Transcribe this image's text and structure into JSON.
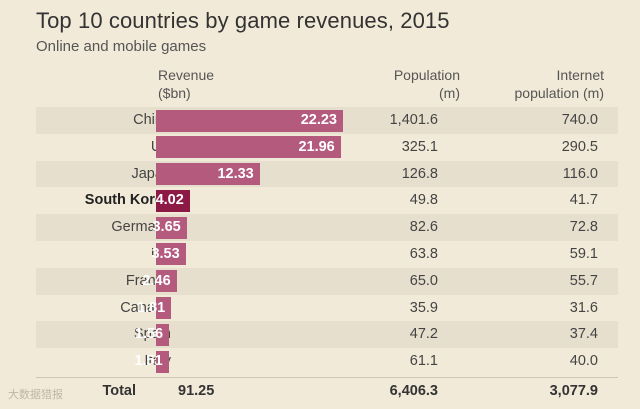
{
  "title": "Top 10 countries by game revenues, 2015",
  "subtitle": "Online and mobile games",
  "headers": {
    "revenue_line1": "Revenue",
    "revenue_line2": "($bn)",
    "population_line1": "Population",
    "population_line2": "(m)",
    "internet_line1": "Internet",
    "internet_line2": "population (m)"
  },
  "total": {
    "label": "Total",
    "revenue": "91.25",
    "population": "6,406.3",
    "internet": "3,077.9"
  },
  "watermark": "大数据猎报",
  "colors": {
    "background": "#f2ead8",
    "bar": "#b45a7c",
    "highlight_bar": "#8d1a44",
    "alt_row": "#e7dfce"
  },
  "chart_data": {
    "type": "bar",
    "orientation": "horizontal",
    "title": "Top 10 countries by game revenues, 2015",
    "subtitle": "Online and mobile games",
    "categories": [
      "China",
      "US",
      "Japan",
      "South Korea",
      "Germany",
      "UK",
      "France",
      "Canada",
      "Spain",
      "Italy"
    ],
    "highlight": "South Korea",
    "series": [
      {
        "name": "Revenue ($bn)",
        "values": [
          22.23,
          21.96,
          12.33,
          4.02,
          3.65,
          3.53,
          2.46,
          1.81,
          1.56,
          1.51
        ]
      }
    ],
    "table_columns": [
      {
        "name": "Population (m)",
        "values": [
          "1,401.6",
          "325.1",
          "126.8",
          "49.8",
          "82.6",
          "63.8",
          "65.0",
          "35.9",
          "47.2",
          "61.1"
        ]
      },
      {
        "name": "Internet population (m)",
        "values": [
          "740.0",
          "290.5",
          "116.0",
          "41.7",
          "72.8",
          "59.1",
          "55.7",
          "31.6",
          "37.4",
          "40.0"
        ]
      }
    ],
    "value_labels": [
      "22.23",
      "21.96",
      "12.33",
      "4.02",
      "3.65",
      "3.53",
      "2.46",
      "1.81",
      "1.56",
      "1.51"
    ],
    "xlim": [
      0,
      22.23
    ],
    "grid": false
  }
}
